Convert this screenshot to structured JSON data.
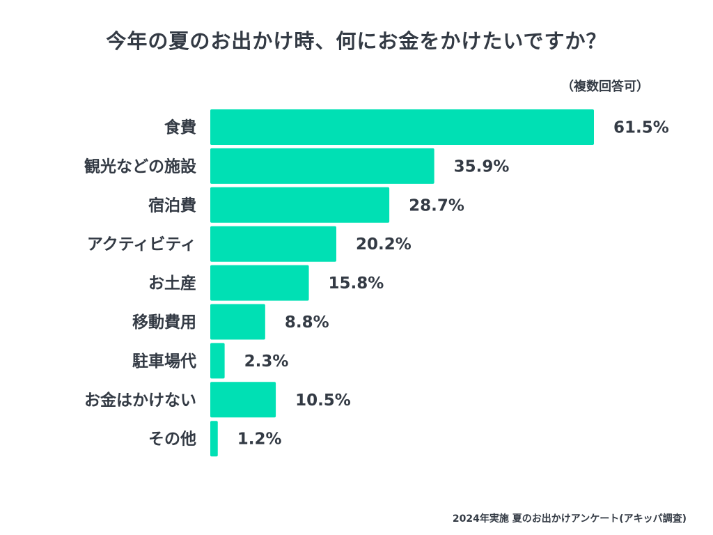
{
  "chart_data": {
    "type": "bar",
    "orientation": "horizontal",
    "title": "今年の夏のお出かけ時、何にお金をかけたいですか？",
    "note": "（複数回答可）",
    "source": "2024年実施 夏のお出かけアンケート(アキッパ調査)",
    "categories": [
      "食費",
      "観光などの施設",
      "宿泊費",
      "アクティビティ",
      "お土産",
      "移動費用",
      "駐車場代",
      "お金はかけない",
      "その他"
    ],
    "values": [
      61.5,
      35.9,
      28.7,
      20.2,
      15.8,
      8.8,
      2.3,
      10.5,
      1.2
    ],
    "value_labels": [
      "61.5%",
      "35.9%",
      "28.7%",
      "20.2%",
      "15.8%",
      "8.8%",
      "2.3%",
      "10.5%",
      "1.2%"
    ],
    "unit": "%",
    "xlim": [
      0,
      61.5
    ],
    "grid": false,
    "bar_color": "#00e0b4"
  }
}
